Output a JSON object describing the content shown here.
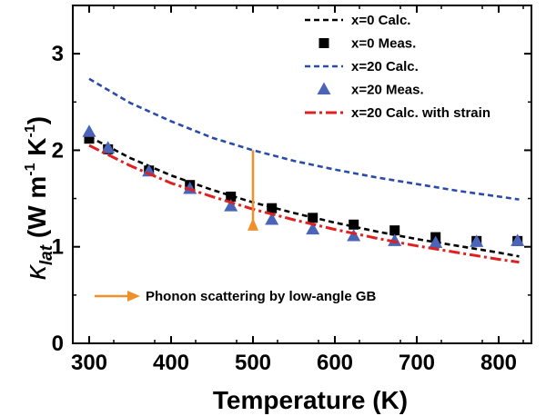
{
  "chart_data": {
    "type": "line",
    "xlabel": "Temperature (K)",
    "ylabel": {
      "symbol": "κ",
      "subscript": "lat",
      "units_prefix": " (W m",
      "exp1": "-1",
      "units_mid": " K",
      "exp2": "-1",
      "units_suffix": ")"
    },
    "xlim": [
      280,
      840
    ],
    "ylim": [
      0,
      3.5
    ],
    "x_ticks": [
      300,
      400,
      500,
      600,
      700,
      800
    ],
    "y_ticks": [
      0,
      1,
      2,
      3
    ],
    "grid": false,
    "legend_position": "top-right",
    "series": [
      {
        "name": "x=0   Calc.",
        "style": "dashed",
        "color": "#000000",
        "x": [
          300,
          350,
          400,
          450,
          500,
          550,
          600,
          650,
          700,
          750,
          800,
          825
        ],
        "y": [
          2.14,
          1.92,
          1.74,
          1.59,
          1.46,
          1.35,
          1.25,
          1.16,
          1.08,
          1.01,
          0.94,
          0.9
        ]
      },
      {
        "name": "x=0   Meas.",
        "style": "square",
        "color": "#000000",
        "x": [
          300,
          323,
          373,
          423,
          473,
          523,
          573,
          623,
          673,
          723,
          773,
          823
        ],
        "y": [
          2.12,
          2.01,
          1.79,
          1.64,
          1.52,
          1.4,
          1.3,
          1.23,
          1.17,
          1.1,
          1.06,
          1.06
        ]
      },
      {
        "name": "x=20  Calc.",
        "style": "dashed",
        "color": "#2b4ba8",
        "x": [
          300,
          350,
          400,
          450,
          500,
          550,
          600,
          650,
          700,
          750,
          800,
          825
        ],
        "y": [
          2.74,
          2.49,
          2.3,
          2.13,
          2.0,
          1.89,
          1.8,
          1.72,
          1.65,
          1.58,
          1.52,
          1.49
        ]
      },
      {
        "name": "x=20  Meas.",
        "style": "triangle",
        "color": "#4a64b8",
        "x": [
          300,
          323,
          373,
          423,
          473,
          523,
          573,
          623,
          673,
          723,
          773,
          823
        ],
        "y": [
          2.19,
          2.02,
          1.78,
          1.6,
          1.42,
          1.28,
          1.18,
          1.11,
          1.06,
          1.04,
          1.05,
          1.06
        ]
      },
      {
        "name": "x=20  Calc. with strain",
        "style": "dashdot",
        "color": "#e02020",
        "x": [
          300,
          350,
          400,
          450,
          500,
          550,
          600,
          650,
          700,
          750,
          800,
          825
        ],
        "y": [
          2.05,
          1.84,
          1.66,
          1.52,
          1.39,
          1.28,
          1.18,
          1.09,
          1.01,
          0.94,
          0.87,
          0.84
        ]
      }
    ],
    "annotations": [
      {
        "type": "arrow",
        "color": "#f0902a",
        "x": 500,
        "y_from": 2.0,
        "y_to": 1.3
      }
    ],
    "legend_arrow": {
      "color": "#f0902a",
      "label": "Phonon scattering by low-angle GB"
    }
  }
}
